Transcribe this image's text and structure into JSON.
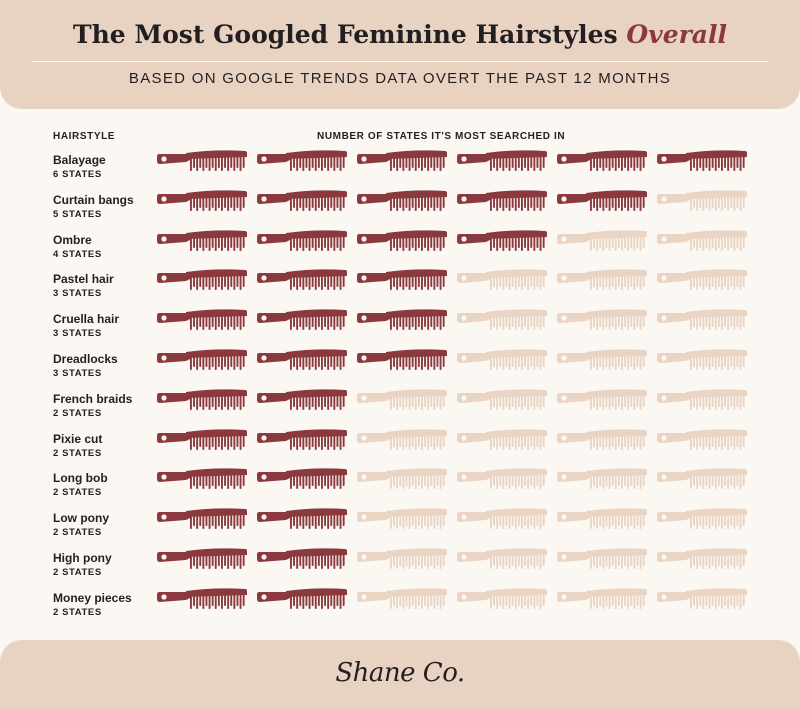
{
  "header": {
    "title_main": "The Most Googled Feminine Hairstyles",
    "title_accent": "Overall",
    "subtitle": "BASED ON GOOGLE TRENDS DATA OVERT THE PAST 12 MONTHS"
  },
  "chart_data": {
    "type": "pictograph",
    "icon": "comb-icon",
    "max_icons": 6,
    "columns": {
      "left": "HAIRSTYLE",
      "right": "NUMBER OF STATES IT'S MOST SEARCHED IN"
    },
    "categories": [
      "Balayage",
      "Curtain bangs",
      "Ombre",
      "Pastel hair",
      "Cruella hair",
      "Dreadlocks",
      "French braids",
      "Pixie cut",
      "Long bob",
      "Low pony",
      "High pony",
      "Money pieces"
    ],
    "values": [
      6,
      5,
      4,
      3,
      3,
      3,
      2,
      2,
      2,
      2,
      2,
      2
    ],
    "value_labels": [
      "6 STATES",
      "5 STATES",
      "4 STATES",
      "3 STATES",
      "3 STATES",
      "3 STATES",
      "2 STATES",
      "2 STATES",
      "2 STATES",
      "2 STATES",
      "2 STATES",
      "2 STATES"
    ],
    "colors": {
      "filled": "#8a3a3e",
      "empty": "#ead5c4"
    }
  },
  "footer": {
    "logo": "Shane Co."
  }
}
